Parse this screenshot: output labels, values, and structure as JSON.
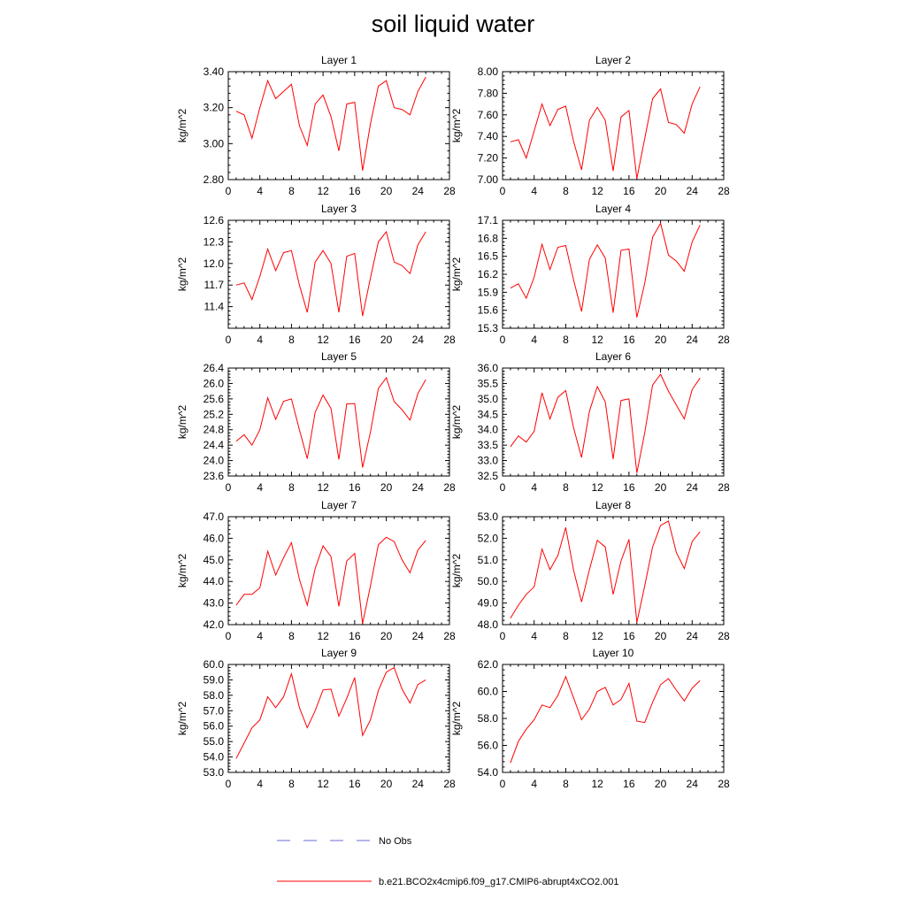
{
  "title": "soil liquid water",
  "chart_data": [
    {
      "type": "line",
      "title": "Layer 1",
      "ylabel": "kg/m^2",
      "xlim": [
        0,
        28
      ],
      "ylim": [
        2.8,
        3.4
      ],
      "xticks": [
        0,
        4,
        8,
        12,
        16,
        20,
        24,
        28
      ],
      "yticks": [
        "2.80",
        "3.00",
        "3.20",
        "3.40"
      ],
      "series": [
        {
          "color": "#ff0000",
          "x": [
            1,
            2,
            3,
            4,
            5,
            6,
            7,
            8,
            9,
            10,
            11,
            12,
            13,
            14,
            15,
            16,
            17,
            18,
            19,
            20,
            21,
            22,
            23,
            24,
            25
          ],
          "y": [
            3.18,
            3.16,
            3.03,
            3.2,
            3.35,
            3.25,
            3.29,
            3.33,
            3.1,
            2.99,
            3.22,
            3.27,
            3.15,
            2.96,
            3.22,
            3.23,
            2.85,
            3.11,
            3.32,
            3.35,
            3.2,
            3.19,
            3.16,
            3.29,
            3.37
          ]
        }
      ]
    },
    {
      "type": "line",
      "title": "Layer 2",
      "ylabel": "kg/m^2",
      "xlim": [
        0,
        28
      ],
      "ylim": [
        7.0,
        8.0
      ],
      "xticks": [
        0,
        4,
        8,
        12,
        16,
        20,
        24,
        28
      ],
      "yticks": [
        "7.00",
        "7.20",
        "7.40",
        "7.60",
        "7.80",
        "8.00"
      ],
      "series": [
        {
          "color": "#ff0000",
          "x": [
            1,
            2,
            3,
            4,
            5,
            6,
            7,
            8,
            9,
            10,
            11,
            12,
            13,
            14,
            15,
            16,
            17,
            18,
            19,
            20,
            21,
            22,
            23,
            24,
            25
          ],
          "y": [
            7.35,
            7.37,
            7.2,
            7.45,
            7.7,
            7.5,
            7.65,
            7.68,
            7.35,
            7.09,
            7.55,
            7.67,
            7.55,
            7.08,
            7.58,
            7.64,
            7.01,
            7.38,
            7.75,
            7.84,
            7.53,
            7.51,
            7.43,
            7.7,
            7.86
          ]
        }
      ]
    },
    {
      "type": "line",
      "title": "Layer 3",
      "ylabel": "kg/m^2",
      "xlim": [
        0,
        28
      ],
      "ylim": [
        11.1,
        12.6
      ],
      "xticks": [
        0,
        4,
        8,
        12,
        16,
        20,
        24,
        28
      ],
      "yticks": [
        "11.4",
        "11.7",
        "12.0",
        "12.3",
        "12.6"
      ],
      "series": [
        {
          "color": "#ff0000",
          "x": [
            1,
            2,
            3,
            4,
            5,
            6,
            7,
            8,
            9,
            10,
            11,
            12,
            13,
            14,
            15,
            16,
            17,
            18,
            19,
            20,
            21,
            22,
            23,
            24,
            25
          ],
          "y": [
            11.7,
            11.73,
            11.5,
            11.82,
            12.2,
            11.9,
            12.15,
            12.18,
            11.7,
            11.32,
            12.02,
            12.18,
            12.0,
            11.32,
            12.1,
            12.14,
            11.27,
            11.8,
            12.3,
            12.44,
            12.02,
            11.97,
            11.86,
            12.26,
            12.44
          ]
        }
      ]
    },
    {
      "type": "line",
      "title": "Layer 4",
      "ylabel": "kg/m^2",
      "xlim": [
        0,
        28
      ],
      "ylim": [
        15.3,
        17.1
      ],
      "xticks": [
        0,
        4,
        8,
        12,
        16,
        20,
        24,
        28
      ],
      "yticks": [
        "15.3",
        "15.6",
        "15.9",
        "16.2",
        "16.5",
        "16.8",
        "17.1"
      ],
      "series": [
        {
          "color": "#ff0000",
          "x": [
            1,
            2,
            3,
            4,
            5,
            6,
            7,
            8,
            9,
            10,
            11,
            12,
            13,
            14,
            15,
            16,
            17,
            18,
            19,
            20,
            21,
            22,
            23,
            24,
            25
          ],
          "y": [
            15.97,
            16.04,
            15.8,
            16.15,
            16.7,
            16.28,
            16.65,
            16.68,
            16.1,
            15.58,
            16.45,
            16.69,
            16.47,
            15.56,
            16.6,
            16.62,
            15.48,
            16.05,
            16.82,
            17.05,
            16.52,
            16.42,
            16.25,
            16.74,
            17.02
          ]
        }
      ]
    },
    {
      "type": "line",
      "title": "Layer 5",
      "ylabel": "kg/m^2",
      "xlim": [
        0,
        28
      ],
      "ylim": [
        23.6,
        26.4
      ],
      "xticks": [
        0,
        4,
        8,
        12,
        16,
        20,
        24,
        28
      ],
      "yticks": [
        "23.6",
        "24.0",
        "24.4",
        "24.8",
        "25.2",
        "25.6",
        "26.0",
        "26.4"
      ],
      "series": [
        {
          "color": "#ff0000",
          "x": [
            1,
            2,
            3,
            4,
            5,
            6,
            7,
            8,
            9,
            10,
            11,
            12,
            13,
            14,
            15,
            16,
            17,
            18,
            19,
            20,
            21,
            22,
            23,
            24,
            25
          ],
          "y": [
            24.5,
            24.67,
            24.4,
            24.8,
            25.63,
            25.07,
            25.54,
            25.6,
            24.8,
            24.05,
            25.25,
            25.7,
            25.35,
            24.03,
            25.47,
            25.48,
            23.82,
            24.74,
            25.87,
            26.15,
            25.53,
            25.32,
            25.05,
            25.74,
            26.1
          ]
        }
      ]
    },
    {
      "type": "line",
      "title": "Layer 6",
      "ylabel": "kg/m^2",
      "xlim": [
        0,
        28
      ],
      "ylim": [
        32.5,
        36.0
      ],
      "xticks": [
        0,
        4,
        8,
        12,
        16,
        20,
        24,
        28
      ],
      "yticks": [
        "32.5",
        "33.0",
        "33.5",
        "34.0",
        "34.5",
        "35.0",
        "35.5",
        "36.0"
      ],
      "series": [
        {
          "color": "#ff0000",
          "x": [
            1,
            2,
            3,
            4,
            5,
            6,
            7,
            8,
            9,
            10,
            11,
            12,
            13,
            14,
            15,
            16,
            17,
            18,
            19,
            20,
            21,
            22,
            23,
            24,
            25
          ],
          "y": [
            33.45,
            33.8,
            33.6,
            33.95,
            35.2,
            34.35,
            35.05,
            35.27,
            34.05,
            33.1,
            34.6,
            35.4,
            34.9,
            33.05,
            34.95,
            35.0,
            32.6,
            33.9,
            35.45,
            35.8,
            35.25,
            34.8,
            34.35,
            35.3,
            35.68
          ]
        }
      ]
    },
    {
      "type": "line",
      "title": "Layer 7",
      "ylabel": "kg/m^2",
      "xlim": [
        0,
        28
      ],
      "ylim": [
        42.0,
        47.0
      ],
      "xticks": [
        0,
        4,
        8,
        12,
        16,
        20,
        24,
        28
      ],
      "yticks": [
        "42.0",
        "43.0",
        "44.0",
        "45.0",
        "46.0",
        "47.0"
      ],
      "series": [
        {
          "color": "#ff0000",
          "x": [
            1,
            2,
            3,
            4,
            5,
            6,
            7,
            8,
            9,
            10,
            11,
            12,
            13,
            14,
            15,
            16,
            17,
            18,
            19,
            20,
            21,
            22,
            23,
            24,
            25
          ],
          "y": [
            42.9,
            43.4,
            43.4,
            43.7,
            45.4,
            44.3,
            45.1,
            45.8,
            44.1,
            42.9,
            44.6,
            45.65,
            45.15,
            42.85,
            44.95,
            45.3,
            42.05,
            43.8,
            45.7,
            46.05,
            45.85,
            45.0,
            44.4,
            45.45,
            45.9
          ]
        }
      ]
    },
    {
      "type": "line",
      "title": "Layer 8",
      "ylabel": "kg/m^2",
      "xlim": [
        0,
        28
      ],
      "ylim": [
        48.0,
        53.0
      ],
      "xticks": [
        0,
        4,
        8,
        12,
        16,
        20,
        24,
        28
      ],
      "yticks": [
        "48.0",
        "49.0",
        "50.0",
        "51.0",
        "52.0",
        "53.0"
      ],
      "series": [
        {
          "color": "#ff0000",
          "x": [
            1,
            2,
            3,
            4,
            5,
            6,
            7,
            8,
            9,
            10,
            11,
            12,
            13,
            14,
            15,
            16,
            17,
            18,
            19,
            20,
            21,
            22,
            23,
            24,
            25
          ],
          "y": [
            48.3,
            48.9,
            49.4,
            49.75,
            51.5,
            50.55,
            51.2,
            52.5,
            50.5,
            49.05,
            50.55,
            51.9,
            51.6,
            49.4,
            50.95,
            51.95,
            48.1,
            49.8,
            51.6,
            52.6,
            52.8,
            51.35,
            50.6,
            51.85,
            52.3
          ]
        }
      ]
    },
    {
      "type": "line",
      "title": "Layer 9",
      "ylabel": "kg/m^2",
      "xlim": [
        0,
        28
      ],
      "ylim": [
        53.0,
        60.0
      ],
      "xticks": [
        0,
        4,
        8,
        12,
        16,
        20,
        24,
        28
      ],
      "yticks": [
        "53.0",
        "54.0",
        "55.0",
        "56.0",
        "57.0",
        "58.0",
        "59.0",
        "60.0"
      ],
      "series": [
        {
          "color": "#ff0000",
          "x": [
            1,
            2,
            3,
            4,
            5,
            6,
            7,
            8,
            9,
            10,
            11,
            12,
            13,
            14,
            15,
            16,
            17,
            18,
            19,
            20,
            21,
            22,
            23,
            24,
            25
          ],
          "y": [
            53.9,
            54.9,
            55.9,
            56.4,
            57.9,
            57.2,
            57.9,
            59.4,
            57.2,
            55.9,
            57.0,
            58.35,
            58.4,
            56.65,
            57.8,
            59.15,
            55.4,
            56.4,
            58.3,
            59.5,
            59.8,
            58.4,
            57.5,
            58.7,
            59.0
          ]
        }
      ]
    },
    {
      "type": "line",
      "title": "Layer 10",
      "ylabel": "kg/m^2",
      "xlim": [
        0,
        28
      ],
      "ylim": [
        54.0,
        62.0
      ],
      "xticks": [
        0,
        4,
        8,
        12,
        16,
        20,
        24,
        28
      ],
      "yticks": [
        "54.0",
        "56.0",
        "58.0",
        "60.0",
        "62.0"
      ],
      "series": [
        {
          "color": "#ff0000",
          "x": [
            1,
            2,
            3,
            4,
            5,
            6,
            7,
            8,
            9,
            10,
            11,
            12,
            13,
            14,
            15,
            16,
            17,
            18,
            19,
            20,
            21,
            22,
            23,
            24,
            25
          ],
          "y": [
            54.7,
            56.3,
            57.2,
            57.9,
            59.0,
            58.8,
            59.7,
            61.1,
            59.5,
            57.9,
            58.7,
            60.0,
            60.3,
            59.0,
            59.4,
            60.6,
            57.8,
            57.7,
            59.2,
            60.5,
            60.95,
            60.1,
            59.3,
            60.25,
            60.8
          ]
        }
      ]
    }
  ],
  "legend": [
    {
      "label": "No Obs",
      "color": "#6b6bd6",
      "style": "dashed"
    },
    {
      "label": "b.e21.BCO2x4cmip6.f09_g17.CMIP6-abrupt4xCO2.001",
      "color": "#ff0000",
      "style": "solid"
    }
  ]
}
